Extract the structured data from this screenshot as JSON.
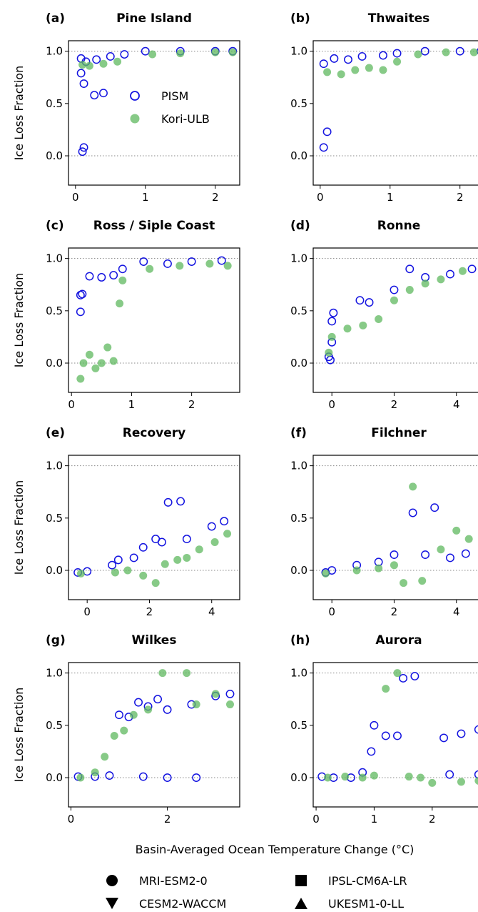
{
  "figure": {
    "xlabel": "Basin-Averaged Ocean Temperature Change (°C)",
    "ylabel": "Ice Loss Fraction"
  },
  "colors": {
    "PISM": "#1414e0",
    "Kori-ULB": "#5fb85f",
    "refline": "#888888"
  },
  "legend_models": [
    {
      "label": "PISM",
      "style": "open-circle"
    },
    {
      "label": "Kori-ULB",
      "style": "filled-circle"
    }
  ],
  "legend_forcings": [
    {
      "label": "MRI-ESM2-0",
      "marker": "circle"
    },
    {
      "label": "IPSL-CM6A-LR",
      "marker": "square"
    },
    {
      "label": "CESM2-WACCM",
      "marker": "triangle-down"
    },
    {
      "label": "UKESM1-0-LL",
      "marker": "triangle-up"
    }
  ],
  "chart_data": [
    {
      "type": "scatter",
      "label": "(a)",
      "title": "Pine Island",
      "xlim": [
        -0.1,
        2.35
      ],
      "ylim": [
        -0.28,
        1.1
      ],
      "xticks": [
        0,
        1,
        2
      ],
      "yticks": [
        0.0,
        0.5,
        1.0
      ],
      "ytick_labels": [
        "0.0",
        "0.5",
        "1.0"
      ],
      "series": [
        {
          "name": "PISM",
          "points": [
            [
              0.08,
              0.79
            ],
            [
              0.08,
              0.93
            ],
            [
              0.12,
              0.69
            ],
            [
              0.1,
              0.04
            ],
            [
              0.12,
              0.08
            ],
            [
              0.27,
              0.58
            ],
            [
              0.4,
              0.6
            ],
            [
              0.15,
              0.9
            ],
            [
              0.3,
              0.92
            ],
            [
              0.5,
              0.95
            ],
            [
              0.7,
              0.97
            ],
            [
              1.0,
              1.0
            ],
            [
              1.5,
              1.0
            ],
            [
              2.0,
              1.0
            ],
            [
              2.25,
              1.0
            ]
          ]
        },
        {
          "name": "Kori-ULB",
          "points": [
            [
              0.1,
              0.87
            ],
            [
              0.2,
              0.86
            ],
            [
              0.4,
              0.88
            ],
            [
              0.6,
              0.9
            ],
            [
              1.1,
              0.97
            ],
            [
              1.5,
              0.98
            ],
            [
              2.0,
              0.99
            ],
            [
              2.25,
              0.99
            ]
          ]
        }
      ]
    },
    {
      "type": "scatter",
      "label": "(b)",
      "title": "Thwaites",
      "xlim": [
        -0.1,
        2.35
      ],
      "ylim": [
        -0.28,
        1.1
      ],
      "xticks": [
        0,
        1,
        2
      ],
      "yticks": [
        0.0,
        0.5,
        1.0
      ],
      "ytick_labels": [
        "0.0",
        "0.5",
        "1.0"
      ],
      "series": [
        {
          "name": "PISM",
          "points": [
            [
              0.05,
              0.08
            ],
            [
              0.1,
              0.23
            ],
            [
              0.05,
              0.88
            ],
            [
              0.2,
              0.93
            ],
            [
              0.4,
              0.92
            ],
            [
              0.6,
              0.95
            ],
            [
              0.9,
              0.96
            ],
            [
              1.1,
              0.98
            ],
            [
              1.5,
              1.0
            ],
            [
              2.0,
              1.0
            ],
            [
              2.3,
              1.0
            ]
          ]
        },
        {
          "name": "Kori-ULB",
          "points": [
            [
              0.1,
              0.8
            ],
            [
              0.3,
              0.78
            ],
            [
              0.5,
              0.82
            ],
            [
              0.7,
              0.84
            ],
            [
              0.9,
              0.82
            ],
            [
              1.1,
              0.9
            ],
            [
              1.4,
              0.97
            ],
            [
              1.8,
              0.99
            ],
            [
              2.2,
              0.99
            ]
          ]
        }
      ]
    },
    {
      "type": "scatter",
      "label": "(c)",
      "title": "Ross / Siple Coast",
      "xlim": [
        -0.05,
        2.8
      ],
      "ylim": [
        -0.28,
        1.1
      ],
      "xticks": [
        0,
        1,
        2
      ],
      "yticks": [
        0.0,
        0.5,
        1.0
      ],
      "ytick_labels": [
        "0.0",
        "0.5",
        "1.0"
      ],
      "series": [
        {
          "name": "PISM",
          "points": [
            [
              0.15,
              0.49
            ],
            [
              0.15,
              0.65
            ],
            [
              0.18,
              0.66
            ],
            [
              0.3,
              0.83
            ],
            [
              0.5,
              0.82
            ],
            [
              0.7,
              0.84
            ],
            [
              0.85,
              0.9
            ],
            [
              1.2,
              0.97
            ],
            [
              1.6,
              0.95
            ],
            [
              2.0,
              0.97
            ],
            [
              2.5,
              0.98
            ]
          ]
        },
        {
          "name": "Kori-ULB",
          "points": [
            [
              0.15,
              -0.15
            ],
            [
              0.2,
              0.0
            ],
            [
              0.3,
              0.08
            ],
            [
              0.4,
              -0.05
            ],
            [
              0.5,
              0.0
            ],
            [
              0.6,
              0.15
            ],
            [
              0.7,
              0.02
            ],
            [
              0.8,
              0.57
            ],
            [
              0.85,
              0.79
            ],
            [
              1.3,
              0.9
            ],
            [
              1.8,
              0.93
            ],
            [
              2.3,
              0.95
            ],
            [
              2.6,
              0.93
            ]
          ]
        }
      ]
    },
    {
      "type": "scatter",
      "label": "(d)",
      "title": "Ronne",
      "xlim": [
        -0.6,
        4.9
      ],
      "ylim": [
        -0.28,
        1.1
      ],
      "xticks": [
        0,
        2,
        4
      ],
      "yticks": [
        0.0,
        0.5,
        1.0
      ],
      "ytick_labels": [
        "0.0",
        "0.5",
        "1.0"
      ],
      "series": [
        {
          "name": "PISM",
          "points": [
            [
              -0.05,
              0.03
            ],
            [
              -0.1,
              0.06
            ],
            [
              0.0,
              0.2
            ],
            [
              0.0,
              0.4
            ],
            [
              0.05,
              0.48
            ],
            [
              0.9,
              0.6
            ],
            [
              1.2,
              0.58
            ],
            [
              2.0,
              0.7
            ],
            [
              2.5,
              0.9
            ],
            [
              3.0,
              0.82
            ],
            [
              3.8,
              0.85
            ],
            [
              4.5,
              0.9
            ]
          ]
        },
        {
          "name": "Kori-ULB",
          "points": [
            [
              -0.1,
              0.1
            ],
            [
              0.0,
              0.25
            ],
            [
              0.5,
              0.33
            ],
            [
              1.0,
              0.36
            ],
            [
              1.5,
              0.42
            ],
            [
              2.0,
              0.6
            ],
            [
              2.5,
              0.7
            ],
            [
              3.0,
              0.76
            ],
            [
              3.5,
              0.8
            ],
            [
              4.2,
              0.88
            ]
          ]
        }
      ]
    },
    {
      "type": "scatter",
      "label": "(e)",
      "title": "Recovery",
      "xlim": [
        -0.6,
        4.9
      ],
      "ylim": [
        -0.28,
        1.1
      ],
      "xticks": [
        0,
        2,
        4
      ],
      "yticks": [
        0.0,
        0.5,
        1.0
      ],
      "ytick_labels": [
        "0.0",
        "0.5",
        "1.0"
      ],
      "series": [
        {
          "name": "PISM",
          "points": [
            [
              -0.3,
              -0.02
            ],
            [
              0.0,
              -0.01
            ],
            [
              0.8,
              0.05
            ],
            [
              1.0,
              0.1
            ],
            [
              1.5,
              0.12
            ],
            [
              1.8,
              0.22
            ],
            [
              2.2,
              0.3
            ],
            [
              2.4,
              0.27
            ],
            [
              2.6,
              0.65
            ],
            [
              3.0,
              0.66
            ],
            [
              3.2,
              0.3
            ],
            [
              4.0,
              0.42
            ],
            [
              4.4,
              0.47
            ]
          ]
        },
        {
          "name": "Kori-ULB",
          "points": [
            [
              -0.2,
              -0.03
            ],
            [
              0.9,
              -0.02
            ],
            [
              1.3,
              0.0
            ],
            [
              1.8,
              -0.05
            ],
            [
              2.2,
              -0.12
            ],
            [
              2.5,
              0.06
            ],
            [
              2.9,
              0.1
            ],
            [
              3.2,
              0.12
            ],
            [
              3.6,
              0.2
            ],
            [
              4.1,
              0.27
            ],
            [
              4.5,
              0.35
            ]
          ]
        }
      ]
    },
    {
      "type": "scatter",
      "label": "(f)",
      "title": "Filchner",
      "xlim": [
        -0.6,
        4.9
      ],
      "ylim": [
        -0.28,
        1.1
      ],
      "xticks": [
        0,
        2,
        4
      ],
      "yticks": [
        0.0,
        0.5,
        1.0
      ],
      "ytick_labels": [
        "0.0",
        "0.5",
        "1.0"
      ],
      "series": [
        {
          "name": "PISM",
          "points": [
            [
              -0.2,
              -0.02
            ],
            [
              0.0,
              0.0
            ],
            [
              0.8,
              0.05
            ],
            [
              1.5,
              0.08
            ],
            [
              2.0,
              0.15
            ],
            [
              2.6,
              0.55
            ],
            [
              3.0,
              0.15
            ],
            [
              3.3,
              0.6
            ],
            [
              3.8,
              0.12
            ],
            [
              4.3,
              0.16
            ]
          ]
        },
        {
          "name": "Kori-ULB",
          "points": [
            [
              -0.2,
              -0.03
            ],
            [
              0.8,
              0.0
            ],
            [
              1.5,
              0.02
            ],
            [
              2.0,
              0.05
            ],
            [
              2.3,
              -0.12
            ],
            [
              2.6,
              0.8
            ],
            [
              2.9,
              -0.1
            ],
            [
              3.5,
              0.2
            ],
            [
              4.0,
              0.38
            ],
            [
              4.4,
              0.3
            ]
          ]
        }
      ]
    },
    {
      "type": "scatter",
      "label": "(g)",
      "title": "Wilkes",
      "xlim": [
        -0.05,
        3.5
      ],
      "ylim": [
        -0.28,
        1.1
      ],
      "xticks": [
        0,
        2
      ],
      "yticks": [
        0.0,
        0.5,
        1.0
      ],
      "ytick_labels": [
        "0.0",
        "0.5",
        "1.0"
      ],
      "series": [
        {
          "name": "PISM",
          "points": [
            [
              0.15,
              0.01
            ],
            [
              0.5,
              0.01
            ],
            [
              0.8,
              0.02
            ],
            [
              1.0,
              0.6
            ],
            [
              1.2,
              0.58
            ],
            [
              1.4,
              0.72
            ],
            [
              1.6,
              0.68
            ],
            [
              1.8,
              0.75
            ],
            [
              2.0,
              0.65
            ],
            [
              2.5,
              0.7
            ],
            [
              3.0,
              0.78
            ],
            [
              3.3,
              0.8
            ],
            [
              1.5,
              0.01
            ],
            [
              2.0,
              0.0
            ],
            [
              2.6,
              0.0
            ]
          ]
        },
        {
          "name": "Kori-ULB",
          "points": [
            [
              0.2,
              0.0
            ],
            [
              0.5,
              0.05
            ],
            [
              0.7,
              0.2
            ],
            [
              0.9,
              0.4
            ],
            [
              1.1,
              0.45
            ],
            [
              1.3,
              0.6
            ],
            [
              1.6,
              0.65
            ],
            [
              1.9,
              1.0
            ],
            [
              2.4,
              1.0
            ],
            [
              2.6,
              0.7
            ],
            [
              3.0,
              0.8
            ],
            [
              3.3,
              0.7
            ]
          ]
        }
      ]
    },
    {
      "type": "scatter",
      "label": "(h)",
      "title": "Aurora",
      "xlim": [
        -0.05,
        2.9
      ],
      "ylim": [
        -0.28,
        1.1
      ],
      "xticks": [
        0,
        1,
        2
      ],
      "yticks": [
        0.0,
        0.5,
        1.0
      ],
      "ytick_labels": [
        "0.0",
        "0.5",
        "1.0"
      ],
      "series": [
        {
          "name": "PISM",
          "points": [
            [
              0.1,
              0.01
            ],
            [
              0.3,
              0.0
            ],
            [
              0.6,
              0.0
            ],
            [
              0.8,
              0.05
            ],
            [
              0.95,
              0.25
            ],
            [
              1.0,
              0.5
            ],
            [
              1.2,
              0.4
            ],
            [
              1.4,
              0.4
            ],
            [
              1.5,
              0.95
            ],
            [
              1.7,
              0.97
            ],
            [
              2.2,
              0.38
            ],
            [
              2.5,
              0.42
            ],
            [
              2.8,
              0.46
            ],
            [
              2.3,
              0.03
            ],
            [
              2.8,
              0.03
            ]
          ]
        },
        {
          "name": "Kori-ULB",
          "points": [
            [
              0.2,
              0.0
            ],
            [
              0.5,
              0.01
            ],
            [
              0.8,
              0.0
            ],
            [
              1.0,
              0.02
            ],
            [
              1.2,
              0.85
            ],
            [
              1.4,
              1.0
            ],
            [
              1.6,
              0.01
            ],
            [
              1.8,
              0.0
            ],
            [
              2.0,
              -0.05
            ],
            [
              2.5,
              -0.04
            ],
            [
              2.8,
              -0.03
            ]
          ]
        }
      ]
    }
  ]
}
